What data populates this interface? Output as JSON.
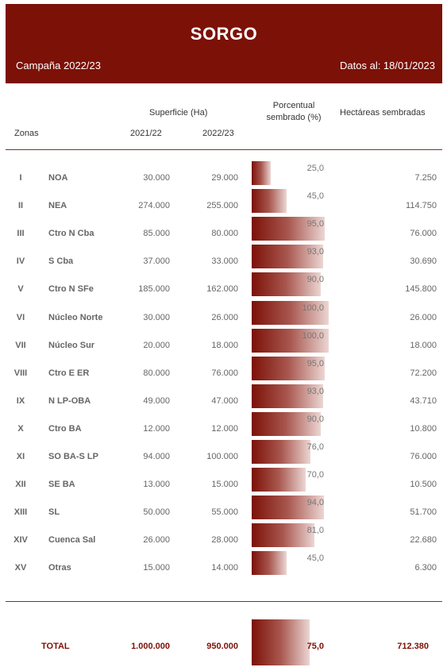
{
  "header": {
    "title": "SORGO",
    "campaign": "Campaña 2022/23",
    "date": "Datos al: 18/01/2023"
  },
  "columns": {
    "surface": "Superficie (Ha)",
    "zones": "Zonas",
    "y1": "2021/22",
    "y2": "2022/23",
    "pct_line1": "Porcentual",
    "pct_line2": "sembrado (%)",
    "sown": "Hectáreas sembradas"
  },
  "colors": {
    "accent": "#7c1107"
  },
  "rows": [
    {
      "roman": "I",
      "zone": "NOA",
      "v1": "30.000",
      "v2": "29.000",
      "pct": "25,0",
      "pct_value": 25,
      "ha": "7.250"
    },
    {
      "roman": "II",
      "zone": "NEA",
      "v1": "274.000",
      "v2": "255.000",
      "pct": "45,0",
      "pct_value": 45,
      "ha": "114.750"
    },
    {
      "roman": "III",
      "zone": "Ctro N Cba",
      "v1": "85.000",
      "v2": "80.000",
      "pct": "95,0",
      "pct_value": 95,
      "ha": "76.000"
    },
    {
      "roman": "IV",
      "zone": "S Cba",
      "v1": "37.000",
      "v2": "33.000",
      "pct": "93,0",
      "pct_value": 93,
      "ha": "30.690"
    },
    {
      "roman": "V",
      "zone": "Ctro N SFe",
      "v1": "185.000",
      "v2": "162.000",
      "pct": "90,0",
      "pct_value": 90,
      "ha": "145.800"
    },
    {
      "roman": "VI",
      "zone": "Núcleo Norte",
      "v1": "30.000",
      "v2": "26.000",
      "pct": "100,0",
      "pct_value": 100,
      "ha": "26.000"
    },
    {
      "roman": "VII",
      "zone": "Núcleo Sur",
      "v1": "20.000",
      "v2": "18.000",
      "pct": "100,0",
      "pct_value": 100,
      "ha": "18.000"
    },
    {
      "roman": "VIII",
      "zone": "Ctro E ER",
      "v1": "80.000",
      "v2": "76.000",
      "pct": "95,0",
      "pct_value": 95,
      "ha": "72.200"
    },
    {
      "roman": "IX",
      "zone": "N LP-OBA",
      "v1": "49.000",
      "v2": "47.000",
      "pct": "93,0",
      "pct_value": 93,
      "ha": "43.710"
    },
    {
      "roman": "X",
      "zone": "Ctro BA",
      "v1": "12.000",
      "v2": "12.000",
      "pct": "90,0",
      "pct_value": 90,
      "ha": "10.800"
    },
    {
      "roman": "XI",
      "zone": "SO BA-S LP",
      "v1": "94.000",
      "v2": "100.000",
      "pct": "76,0",
      "pct_value": 76,
      "ha": "76.000"
    },
    {
      "roman": "XII",
      "zone": "SE BA",
      "v1": "13.000",
      "v2": "15.000",
      "pct": "70,0",
      "pct_value": 70,
      "ha": "10.500"
    },
    {
      "roman": "XIII",
      "zone": "SL",
      "v1": "50.000",
      "v2": "55.000",
      "pct": "94,0",
      "pct_value": 94,
      "ha": "51.700"
    },
    {
      "roman": "XIV",
      "zone": "Cuenca Sal",
      "v1": "26.000",
      "v2": "28.000",
      "pct": "81,0",
      "pct_value": 81,
      "ha": "22.680"
    },
    {
      "roman": "XV",
      "zone": "Otras",
      "v1": "15.000",
      "v2": "14.000",
      "pct": "45,0",
      "pct_value": 45,
      "ha": "6.300"
    }
  ],
  "total": {
    "label": "TOTAL",
    "v1": "1.000.000",
    "v2": "950.000",
    "pct": "75,0",
    "pct_value": 75,
    "ha": "712.380"
  }
}
